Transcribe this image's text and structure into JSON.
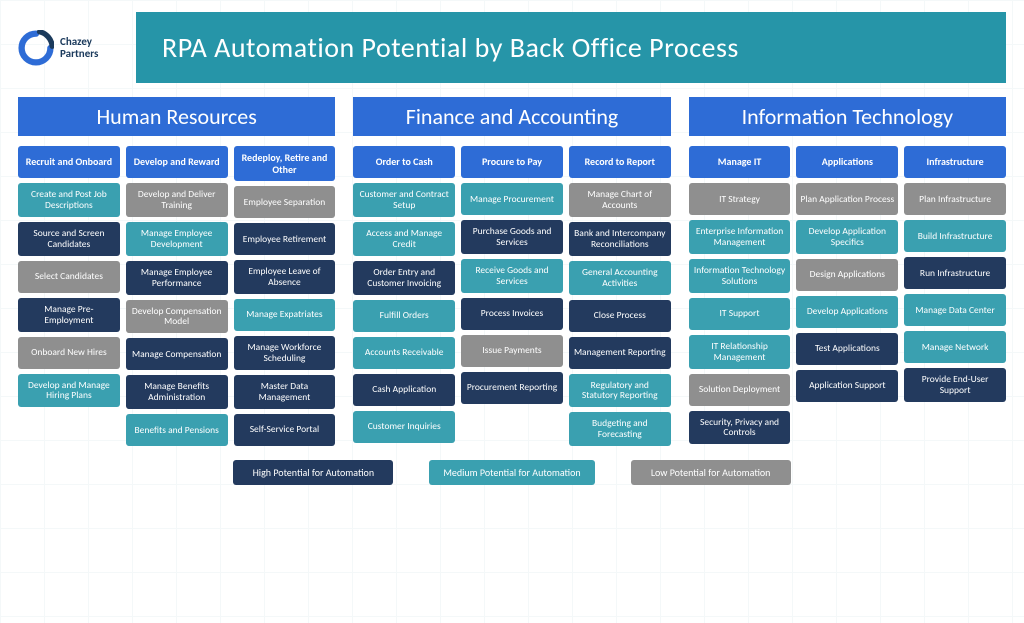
{
  "logo": {
    "line1": "Chazey",
    "line2": "Partners"
  },
  "title": "RPA Automation Potential by Back Office Process",
  "colors": {
    "title_bg": "#2695a8",
    "section_head_bg": "#2e6cd6",
    "cat_head_bg": "#2e6cd6",
    "high": "#233a5e",
    "medium": "#3aa0b0",
    "low": "#8f8f8f"
  },
  "legend": [
    {
      "label": "High Potential for Automation",
      "level": "high"
    },
    {
      "label": "Medium Potential for Automation",
      "level": "medium"
    },
    {
      "label": "Low Potential for Automation",
      "level": "low"
    }
  ],
  "sections": [
    {
      "title": "Human Resources",
      "categories": [
        {
          "title": "Recruit and Onboard",
          "items": [
            {
              "label": "Create and Post Job Descriptions",
              "level": "medium"
            },
            {
              "label": "Source and Screen Candidates",
              "level": "high"
            },
            {
              "label": "Select Candidates",
              "level": "low"
            },
            {
              "label": "Manage Pre-Employment",
              "level": "high"
            },
            {
              "label": "Onboard New Hires",
              "level": "low"
            },
            {
              "label": "Develop and Manage Hiring Plans",
              "level": "medium"
            }
          ]
        },
        {
          "title": "Develop and Reward",
          "items": [
            {
              "label": "Develop and Deliver Training",
              "level": "low"
            },
            {
              "label": "Manage Employee Development",
              "level": "medium"
            },
            {
              "label": "Manage Employee Performance",
              "level": "high"
            },
            {
              "label": "Develop Compensation Model",
              "level": "low"
            },
            {
              "label": "Manage Compensation",
              "level": "high"
            },
            {
              "label": "Manage Benefits Administration",
              "level": "high"
            },
            {
              "label": "Benefits and Pensions",
              "level": "medium"
            }
          ]
        },
        {
          "title": "Redeploy, Retire and Other",
          "items": [
            {
              "label": "Employee Separation",
              "level": "low"
            },
            {
              "label": "Employee Retirement",
              "level": "high"
            },
            {
              "label": "Employee Leave of Absence",
              "level": "high"
            },
            {
              "label": "Manage Expatriates",
              "level": "medium"
            },
            {
              "label": "Manage Workforce Scheduling",
              "level": "high"
            },
            {
              "label": "Master Data Management",
              "level": "high"
            },
            {
              "label": "Self-Service Portal",
              "level": "high"
            }
          ]
        }
      ]
    },
    {
      "title": "Finance and Accounting",
      "categories": [
        {
          "title": "Order to Cash",
          "items": [
            {
              "label": "Customer and Contract Setup",
              "level": "medium"
            },
            {
              "label": "Access and Manage Credit",
              "level": "medium"
            },
            {
              "label": "Order Entry and Customer Invoicing",
              "level": "high"
            },
            {
              "label": "Fulfill Orders",
              "level": "medium"
            },
            {
              "label": "Accounts Receivable",
              "level": "medium"
            },
            {
              "label": "Cash Application",
              "level": "high"
            },
            {
              "label": "Customer Inquiries",
              "level": "medium"
            }
          ]
        },
        {
          "title": "Procure to Pay",
          "items": [
            {
              "label": "Manage Procurement",
              "level": "medium"
            },
            {
              "label": "Purchase Goods and Services",
              "level": "high"
            },
            {
              "label": "Receive Goods and Services",
              "level": "medium"
            },
            {
              "label": "Process Invoices",
              "level": "high"
            },
            {
              "label": "Issue Payments",
              "level": "low"
            },
            {
              "label": "Procurement Reporting",
              "level": "high"
            }
          ]
        },
        {
          "title": "Record to Report",
          "items": [
            {
              "label": "Manage Chart of Accounts",
              "level": "low"
            },
            {
              "label": "Bank and Intercompany Reconciliations",
              "level": "high"
            },
            {
              "label": "General Accounting Activities",
              "level": "medium"
            },
            {
              "label": "Close Process",
              "level": "high"
            },
            {
              "label": "Management Reporting",
              "level": "high"
            },
            {
              "label": "Regulatory and Statutory Reporting",
              "level": "medium"
            },
            {
              "label": "Budgeting and Forecasting",
              "level": "medium"
            }
          ]
        }
      ]
    },
    {
      "title": "Information Technology",
      "categories": [
        {
          "title": "Manage IT",
          "items": [
            {
              "label": "IT Strategy",
              "level": "low"
            },
            {
              "label": "Enterprise Information Management",
              "level": "medium"
            },
            {
              "label": "Information Technology Solutions",
              "level": "medium"
            },
            {
              "label": "IT Support",
              "level": "medium"
            },
            {
              "label": "IT Relationship Management",
              "level": "medium"
            },
            {
              "label": "Solution Deployment",
              "level": "low"
            },
            {
              "label": "Security, Privacy and Controls",
              "level": "high"
            }
          ]
        },
        {
          "title": "Applications",
          "items": [
            {
              "label": "Plan Application Process",
              "level": "low"
            },
            {
              "label": "Develop Application Specifics",
              "level": "medium"
            },
            {
              "label": "Design Applications",
              "level": "low"
            },
            {
              "label": "Develop Applications",
              "level": "medium"
            },
            {
              "label": "Test Applications",
              "level": "high"
            },
            {
              "label": "Application Support",
              "level": "high"
            }
          ]
        },
        {
          "title": "Infrastructure",
          "items": [
            {
              "label": "Plan Infrastructure",
              "level": "low"
            },
            {
              "label": "Build Infrastructure",
              "level": "medium"
            },
            {
              "label": "Run Infrastructure",
              "level": "high"
            },
            {
              "label": "Manage Data Center",
              "level": "medium"
            },
            {
              "label": "Manage Network",
              "level": "medium"
            },
            {
              "label": "Provide End-User Support",
              "level": "high"
            }
          ]
        }
      ]
    }
  ]
}
